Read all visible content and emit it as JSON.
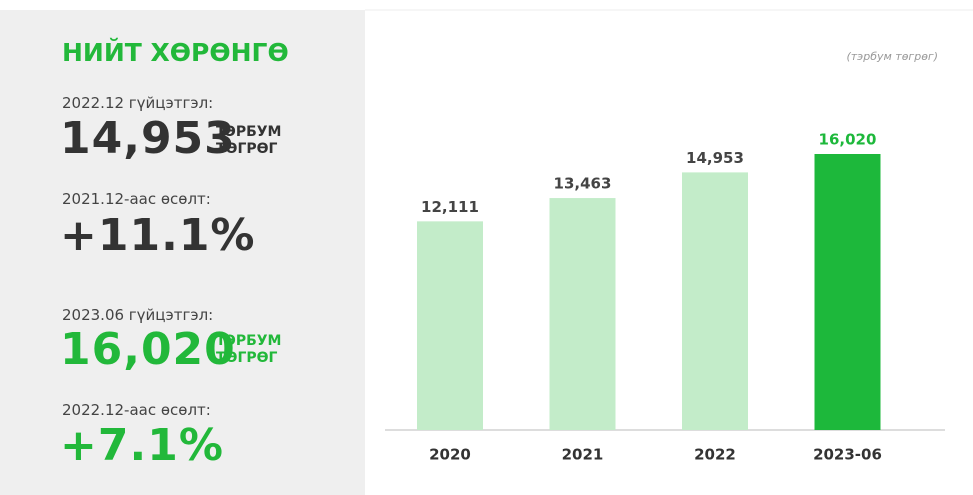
{
  "panel": {
    "title": "НИЙТ ХӨРӨНГӨ",
    "blocks": [
      {
        "label": "2022.12 гүйцэтгэл:",
        "value": "14,953",
        "unit": [
          "ТЭРБУМ",
          "ТӨГРӨГ"
        ]
      },
      {
        "label": "2021.12-аас өсөлт:",
        "value": "+11.1%"
      },
      {
        "label": "2023.06 гүйцэтгэл:",
        "value": "16,020",
        "unit": [
          "ТЭРБУМ",
          "ТӨГРӨГ"
        ]
      },
      {
        "label": "2022.12-аас өсөлт:",
        "value": "+7.1%"
      }
    ]
  },
  "chart_data": {
    "type": "bar",
    "subtitle": "(тэрбум төгрөг)",
    "categories": [
      "2020",
      "2021",
      "2022",
      "2023-06"
    ],
    "values": [
      12111,
      13463,
      14953,
      16020
    ],
    "value_labels": [
      "12,111",
      "13,463",
      "14,953",
      "16,020"
    ],
    "colors": [
      "#c3ecc9",
      "#c3ecc9",
      "#c3ecc9",
      "#1db83b"
    ]
  }
}
